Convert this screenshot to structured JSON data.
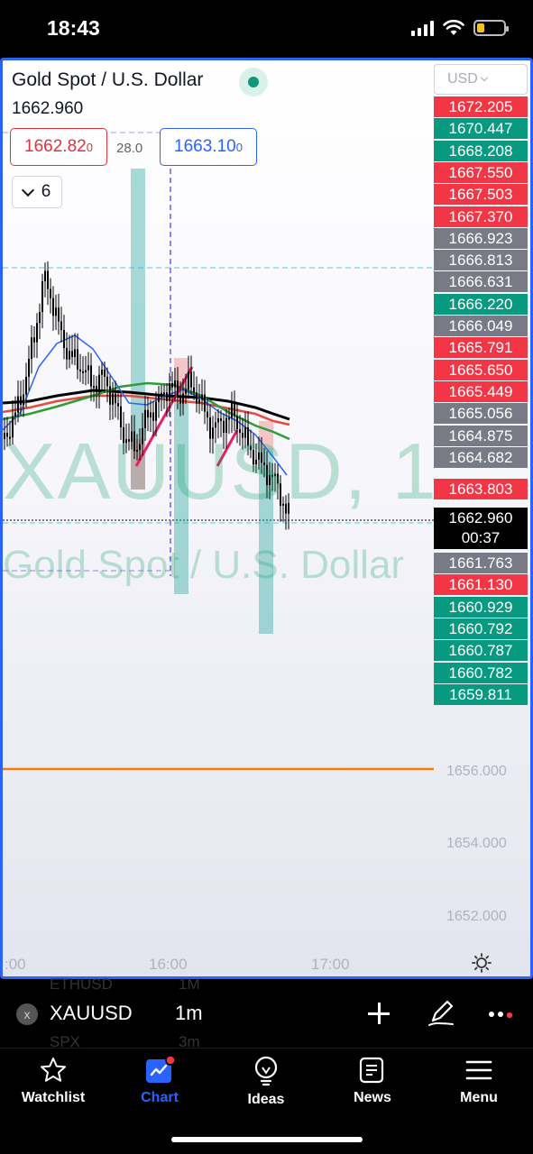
{
  "status_bar": {
    "time": "18:43"
  },
  "header": {
    "title": "Gold Spot / U.S. Dollar",
    "last_price": "1662.960",
    "bid": "1662.82",
    "bid_sup": "0",
    "spread": "28.0",
    "ask": "1663.10",
    "ask_sup": "0",
    "indicators_count": "6"
  },
  "watermark": {
    "symbol": "XAUUSD, 1",
    "description": "Gold Spot / U.S. Dollar"
  },
  "price_axis": {
    "currency": "USD",
    "labels": [
      "1656.000",
      "1654.000",
      "1652.000"
    ],
    "tags": [
      {
        "value": "1672.205",
        "color": "red"
      },
      {
        "value": "1670.447",
        "color": "green"
      },
      {
        "value": "1668.208",
        "color": "green"
      },
      {
        "value": "1667.550",
        "color": "red"
      },
      {
        "value": "1667.503",
        "color": "red"
      },
      {
        "value": "1667.370",
        "color": "red"
      },
      {
        "value": "1666.923",
        "color": "gray"
      },
      {
        "value": "1666.813",
        "color": "gray"
      },
      {
        "value": "1666.631",
        "color": "gray"
      },
      {
        "value": "1666.220",
        "color": "green"
      },
      {
        "value": "1666.049",
        "color": "gray"
      },
      {
        "value": "1665.791",
        "color": "red"
      },
      {
        "value": "1665.650",
        "color": "red"
      },
      {
        "value": "1665.449",
        "color": "red"
      },
      {
        "value": "1665.056",
        "color": "gray"
      },
      {
        "value": "1664.875",
        "color": "gray"
      },
      {
        "value": "1664.682",
        "color": "gray"
      },
      {
        "value": "1663.803",
        "color": "red"
      },
      {
        "value": "1661.763",
        "color": "gray"
      },
      {
        "value": "1661.130",
        "color": "red"
      },
      {
        "value": "1660.929",
        "color": "green"
      },
      {
        "value": "1660.792",
        "color": "green"
      },
      {
        "value": "1660.787",
        "color": "green"
      },
      {
        "value": "1660.782",
        "color": "green"
      },
      {
        "value": "1659.811",
        "color": "green"
      }
    ],
    "current_price": "1662.960",
    "countdown": "00:37"
  },
  "time_axis": {
    "labels": [
      ":00",
      "16:00",
      "17:00"
    ]
  },
  "toolbar": {
    "symbol": "XAUUSD",
    "interval": "1m",
    "ghost_symbol_above": "ETHUSD",
    "ghost_interval_above": "1M",
    "ghost_symbol_below": "SPX",
    "ghost_interval_below": "3m"
  },
  "tabs": [
    {
      "label": "Watchlist",
      "icon": "star-icon"
    },
    {
      "label": "Chart",
      "icon": "chart-icon",
      "active": true
    },
    {
      "label": "Ideas",
      "icon": "lightbulb-icon"
    },
    {
      "label": "News",
      "icon": "newspaper-icon"
    },
    {
      "label": "Menu",
      "icon": "hamburger-icon"
    }
  ],
  "colors": {
    "accent": "#2962ff",
    "up": "#089981",
    "down": "#f23645",
    "neutral": "#787b86",
    "horizontal_level": "#f57c00"
  }
}
